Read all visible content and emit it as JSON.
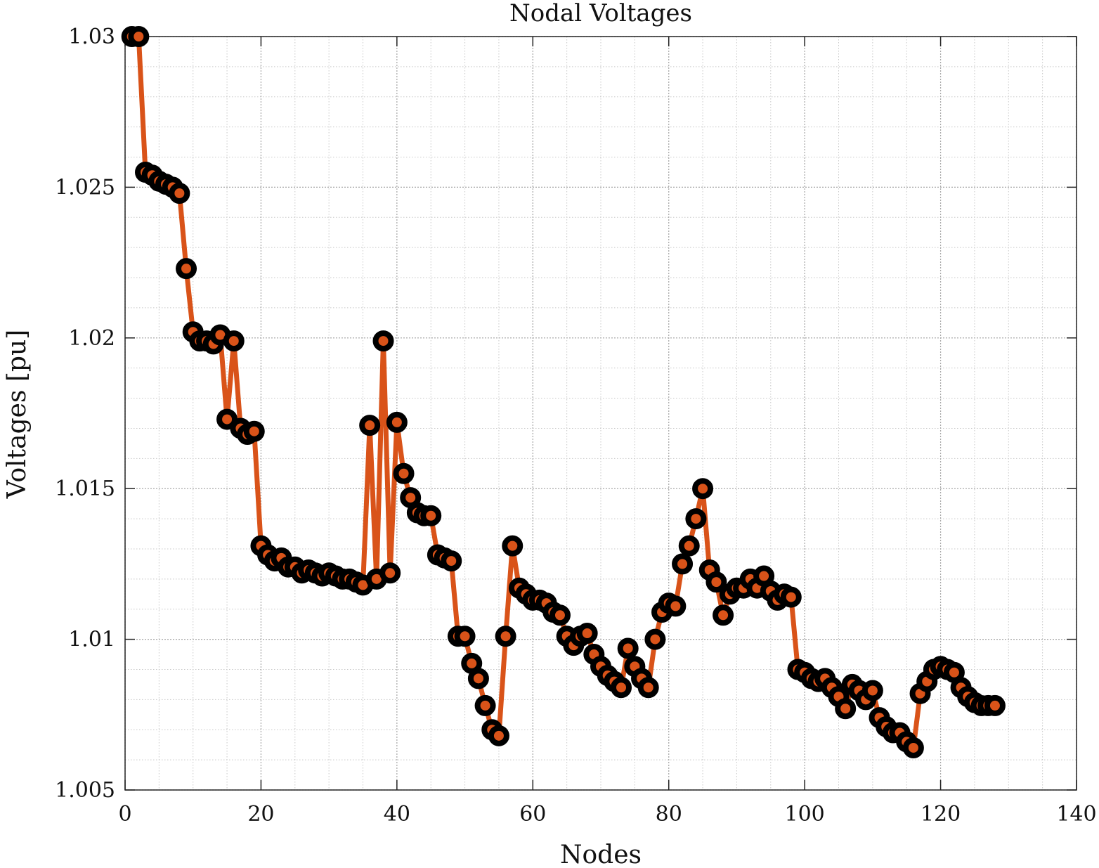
{
  "chart_data": {
    "type": "line",
    "title": "Nodal Voltages",
    "xlabel": "Nodes",
    "ylabel": "Voltages [pu]",
    "xlim": [
      0,
      140
    ],
    "ylim": [
      1.005,
      1.03
    ],
    "xticks": [
      0,
      20,
      40,
      60,
      80,
      100,
      120,
      140
    ],
    "xtick_labels": [
      "0",
      "20",
      "40",
      "60",
      "80",
      "100",
      "120",
      "140"
    ],
    "yticks": [
      1.005,
      1.01,
      1.015,
      1.02,
      1.025,
      1.03
    ],
    "ytick_labels": [
      "1.005",
      "1.01",
      "1.015",
      "1.02",
      "1.025",
      "1.03"
    ],
    "grid": true,
    "minor_grid": true,
    "colors": {
      "line": "#D95319",
      "marker_edge": "#000000",
      "marker_face": "#D95319"
    },
    "series": [
      {
        "x": [
          1,
          2,
          3,
          4,
          5,
          6,
          7,
          8,
          9,
          10,
          11,
          12,
          13,
          14,
          15,
          16,
          17,
          18,
          19,
          20,
          21,
          22,
          23,
          24,
          25,
          26,
          27,
          28,
          29,
          30,
          31,
          32,
          33,
          34,
          35,
          36,
          37,
          38,
          39,
          40,
          41,
          42,
          43,
          44,
          45,
          46,
          47,
          48,
          49,
          50,
          51,
          52,
          53,
          54,
          55,
          56,
          57,
          58,
          59,
          60,
          61,
          62,
          63,
          64,
          65,
          66,
          67,
          68,
          69,
          70,
          71,
          72,
          73,
          74,
          75,
          76,
          77,
          78,
          79,
          80,
          81,
          82,
          83,
          84,
          85,
          86,
          87,
          88,
          89,
          90,
          91,
          92,
          93,
          94,
          95,
          96,
          97,
          98,
          99,
          100,
          101,
          102,
          103,
          104,
          105,
          106,
          107,
          108,
          109,
          110,
          111,
          112,
          113,
          114,
          115,
          116,
          117,
          118,
          119,
          120,
          121,
          122,
          123,
          124,
          125,
          126,
          127,
          128
        ],
        "values": [
          1.03,
          1.03,
          1.0255,
          1.0254,
          1.0252,
          1.0251,
          1.025,
          1.0248,
          1.0223,
          1.0202,
          1.0199,
          1.0199,
          1.0198,
          1.0201,
          1.0173,
          1.0199,
          1.017,
          1.0168,
          1.0169,
          1.0131,
          1.0128,
          1.0126,
          1.0127,
          1.0124,
          1.0124,
          1.0122,
          1.0123,
          1.0122,
          1.0121,
          1.0122,
          1.0121,
          1.012,
          1.012,
          1.0119,
          1.0118,
          1.0171,
          1.012,
          1.0199,
          1.0122,
          1.0172,
          1.0155,
          1.0147,
          1.0142,
          1.0141,
          1.0141,
          1.0128,
          1.0127,
          1.0126,
          1.0101,
          1.0101,
          1.0092,
          1.0087,
          1.0078,
          1.007,
          1.0068,
          1.0101,
          1.0131,
          1.0117,
          1.0115,
          1.0113,
          1.0113,
          1.0112,
          1.0109,
          1.0108,
          1.0101,
          1.0098,
          1.0101,
          1.0102,
          1.0095,
          1.0091,
          1.0088,
          1.0086,
          1.0084,
          1.0097,
          1.0091,
          1.0087,
          1.0084,
          1.01,
          1.0109,
          1.0112,
          1.0111,
          1.0125,
          1.0131,
          1.014,
          1.015,
          1.0123,
          1.0119,
          1.0108,
          1.0115,
          1.0117,
          1.0117,
          1.012,
          1.0117,
          1.0121,
          1.0116,
          1.0113,
          1.0115,
          1.0114,
          1.009,
          1.0089,
          1.0087,
          1.0086,
          1.0087,
          1.0084,
          1.0081,
          1.0077,
          1.0085,
          1.0083,
          1.008,
          1.0083,
          1.0074,
          1.0071,
          1.0069,
          1.0069,
          1.0066,
          1.0064,
          1.0082,
          1.0086,
          1.009,
          1.0091,
          1.009,
          1.0089,
          1.0084,
          1.0081,
          1.0079,
          1.0078,
          1.0078,
          1.0078
        ]
      }
    ]
  }
}
